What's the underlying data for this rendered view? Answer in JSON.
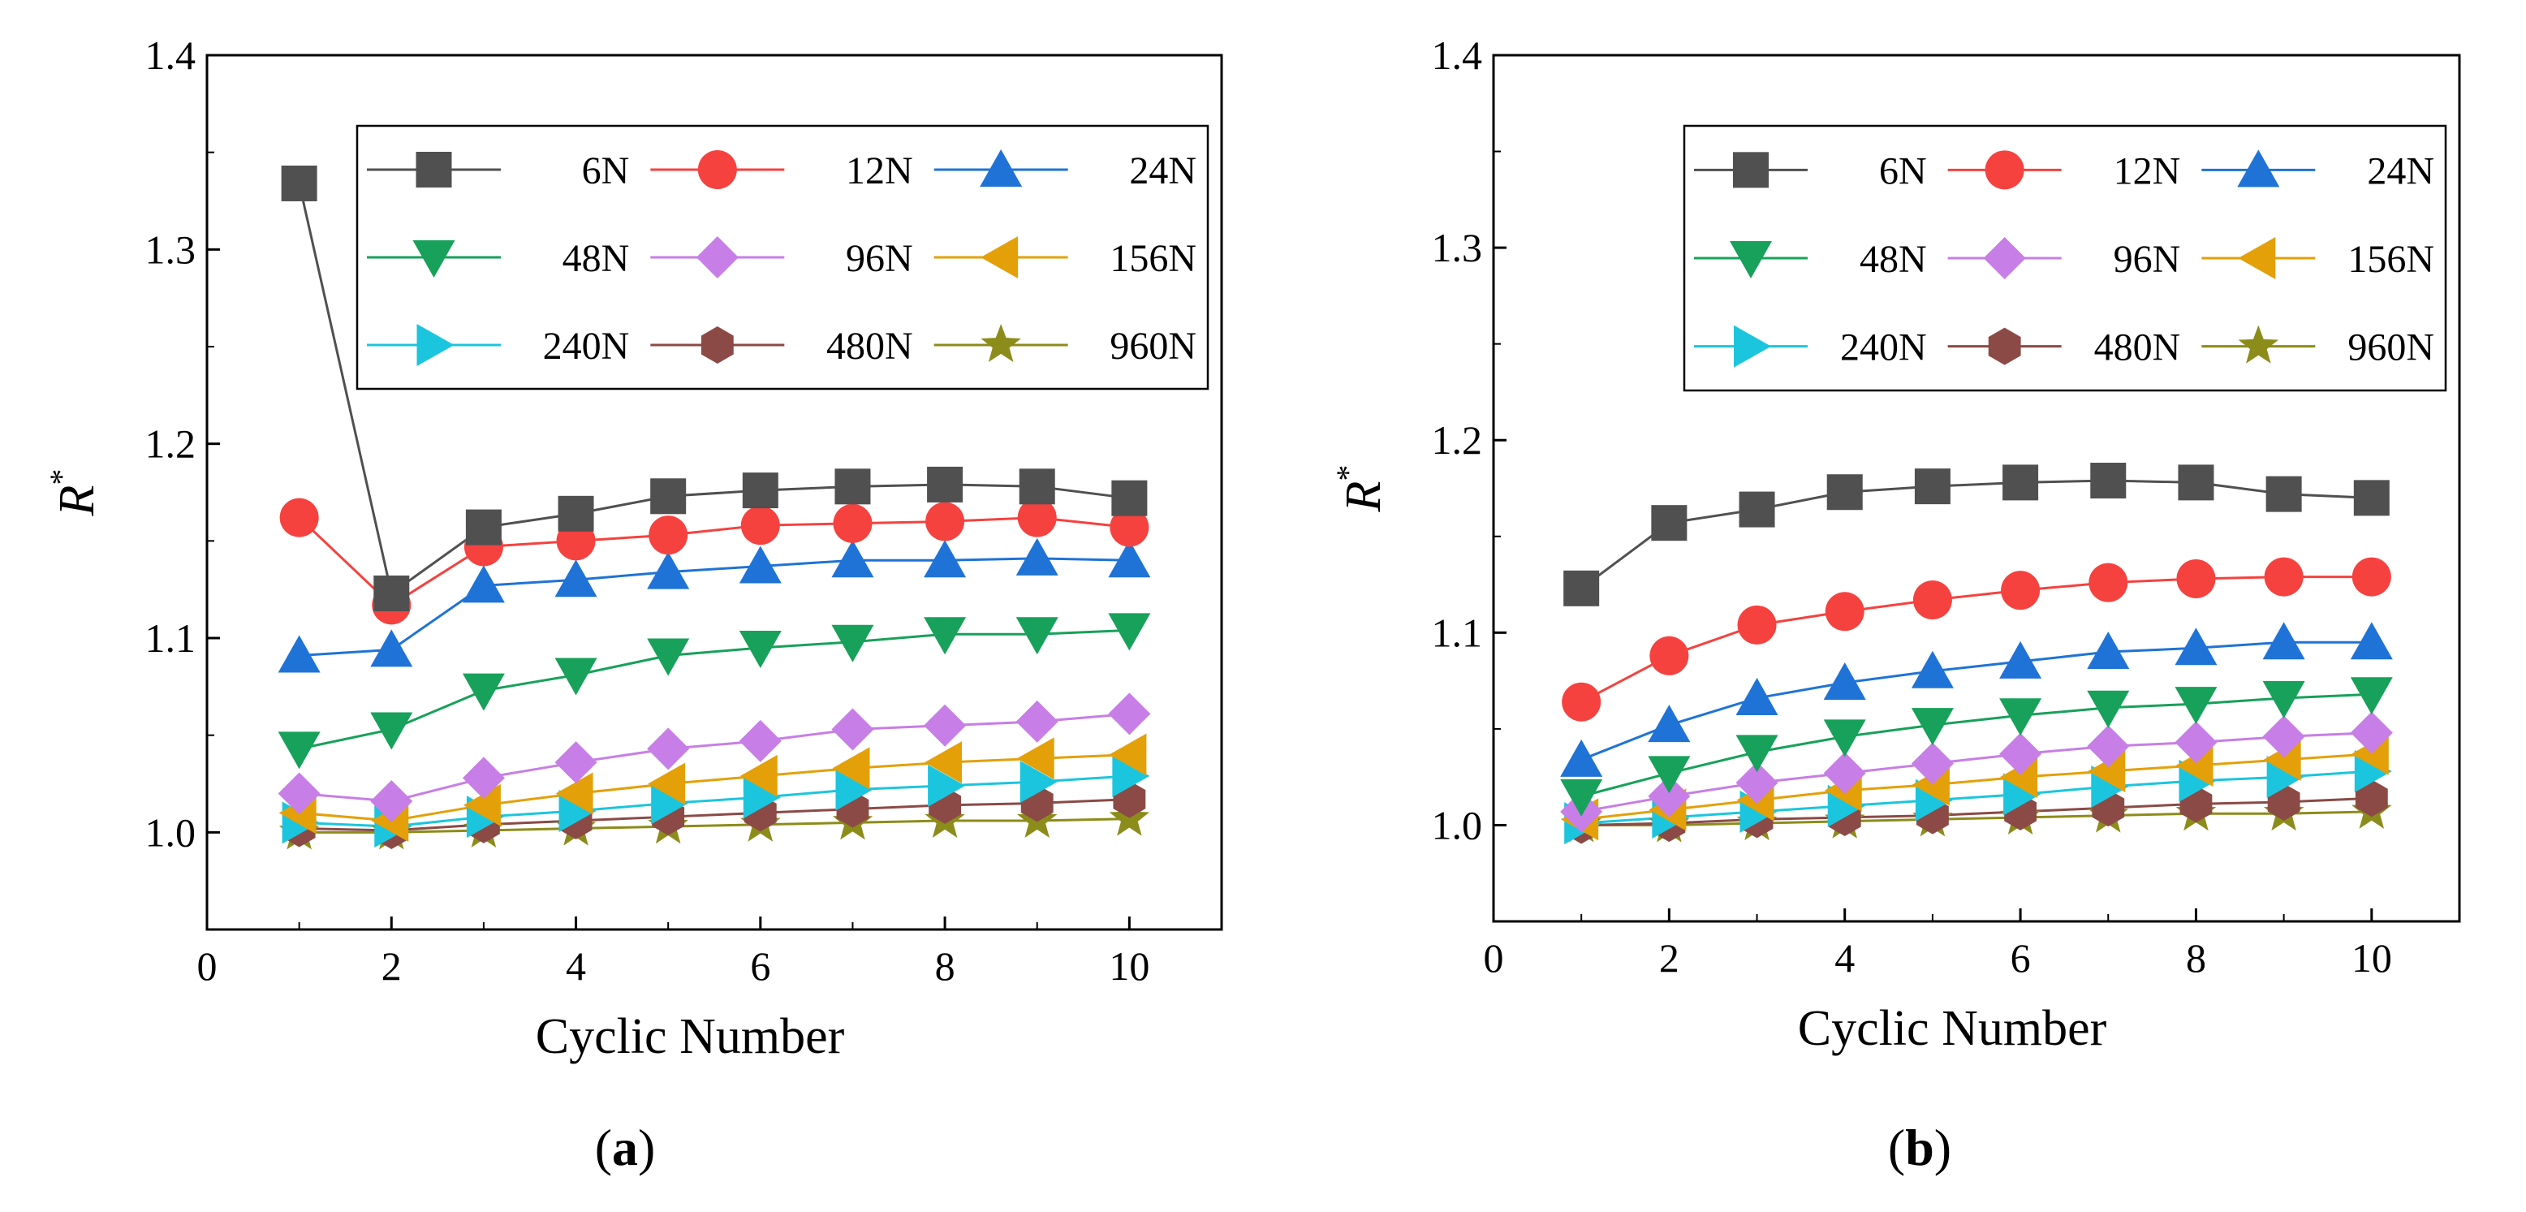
{
  "chart_data": [
    {
      "type": "line",
      "panel_label": "(a)",
      "panel_letter": "a",
      "xlabel": "Cyclic Number",
      "ylabel": "R",
      "ylabel_superscript": "*",
      "xlim": [
        0,
        11
      ],
      "ylim": [
        0.95,
        1.4
      ],
      "xticks": [
        0,
        2,
        4,
        6,
        8,
        10
      ],
      "yticks": [
        1.0,
        1.1,
        1.2,
        1.3,
        1.4
      ],
      "xtick_labels": [
        "0",
        "2",
        "4",
        "6",
        "8",
        "10"
      ],
      "ytick_labels": [
        "1.0",
        "1.1",
        "1.2",
        "1.3",
        "1.4"
      ],
      "grid": false,
      "legend_position": "top-right",
      "x": [
        1,
        2,
        3,
        4,
        5,
        6,
        7,
        8,
        9,
        10
      ],
      "series": [
        {
          "name": "6N",
          "marker": "square",
          "color": "#505050",
          "values": [
            1.334,
            1.123,
            1.157,
            1.164,
            1.173,
            1.176,
            1.178,
            1.179,
            1.178,
            1.172
          ]
        },
        {
          "name": "12N",
          "marker": "circle",
          "color": "#f5423f",
          "values": [
            1.162,
            1.117,
            1.147,
            1.15,
            1.153,
            1.158,
            1.159,
            1.16,
            1.162,
            1.157
          ]
        },
        {
          "name": "24N",
          "marker": "triangle-up",
          "color": "#1f73d6",
          "values": [
            1.091,
            1.094,
            1.127,
            1.13,
            1.134,
            1.137,
            1.14,
            1.14,
            1.141,
            1.14
          ]
        },
        {
          "name": "48N",
          "marker": "triangle-down",
          "color": "#17a15a",
          "values": [
            1.043,
            1.053,
            1.073,
            1.081,
            1.091,
            1.095,
            1.098,
            1.102,
            1.102,
            1.104
          ]
        },
        {
          "name": "96N",
          "marker": "diamond",
          "color": "#c77ee6",
          "values": [
            1.02,
            1.016,
            1.028,
            1.036,
            1.043,
            1.047,
            1.053,
            1.055,
            1.057,
            1.061
          ]
        },
        {
          "name": "156N",
          "marker": "triangle-left",
          "color": "#e3a008",
          "values": [
            1.01,
            1.006,
            1.014,
            1.02,
            1.025,
            1.029,
            1.033,
            1.036,
            1.038,
            1.04
          ]
        },
        {
          "name": "240N",
          "marker": "triangle-right",
          "color": "#1cc5de",
          "values": [
            1.005,
            1.003,
            1.008,
            1.011,
            1.015,
            1.018,
            1.022,
            1.024,
            1.026,
            1.029
          ]
        },
        {
          "name": "480N",
          "marker": "hexagon",
          "color": "#8b4a45",
          "values": [
            1.002,
            1.001,
            1.004,
            1.006,
            1.008,
            1.01,
            1.012,
            1.014,
            1.015,
            1.017
          ]
        },
        {
          "name": "960N",
          "marker": "star",
          "color": "#8c8c1a",
          "values": [
            1.0,
            1.0,
            1.001,
            1.002,
            1.003,
            1.004,
            1.005,
            1.006,
            1.006,
            1.007
          ]
        }
      ]
    },
    {
      "type": "line",
      "panel_label": "(b)",
      "panel_letter": "b",
      "xlabel": "Cyclic Number",
      "ylabel": "R",
      "ylabel_superscript": "*",
      "xlim": [
        0,
        11
      ],
      "ylim": [
        0.95,
        1.4
      ],
      "xticks": [
        0,
        2,
        4,
        6,
        8,
        10
      ],
      "yticks": [
        1.0,
        1.1,
        1.2,
        1.3,
        1.4
      ],
      "xtick_labels": [
        "0",
        "2",
        "4",
        "6",
        "8",
        "10"
      ],
      "ytick_labels": [
        "1.0",
        "1.1",
        "1.2",
        "1.3",
        "1.4"
      ],
      "grid": false,
      "legend_position": "top-right",
      "x": [
        1,
        2,
        3,
        4,
        5,
        6,
        7,
        8,
        9,
        10
      ],
      "series": [
        {
          "name": "6N",
          "marker": "square",
          "color": "#505050",
          "values": [
            1.123,
            1.157,
            1.164,
            1.173,
            1.176,
            1.178,
            1.179,
            1.178,
            1.172,
            1.17
          ]
        },
        {
          "name": "12N",
          "marker": "circle",
          "color": "#f5423f",
          "values": [
            1.064,
            1.088,
            1.104,
            1.111,
            1.117,
            1.122,
            1.126,
            1.128,
            1.129,
            1.129
          ]
        },
        {
          "name": "24N",
          "marker": "triangle-up",
          "color": "#1f73d6",
          "values": [
            1.034,
            1.052,
            1.066,
            1.074,
            1.08,
            1.085,
            1.09,
            1.092,
            1.095,
            1.095
          ]
        },
        {
          "name": "48N",
          "marker": "triangle-down",
          "color": "#17a15a",
          "values": [
            1.015,
            1.027,
            1.038,
            1.046,
            1.052,
            1.057,
            1.061,
            1.063,
            1.066,
            1.068
          ]
        },
        {
          "name": "96N",
          "marker": "diamond",
          "color": "#c77ee6",
          "values": [
            1.007,
            1.015,
            1.022,
            1.027,
            1.032,
            1.037,
            1.041,
            1.043,
            1.046,
            1.048
          ]
        },
        {
          "name": "156N",
          "marker": "triangle-left",
          "color": "#e3a008",
          "values": [
            1.003,
            1.008,
            1.013,
            1.018,
            1.021,
            1.025,
            1.028,
            1.031,
            1.034,
            1.037
          ]
        },
        {
          "name": "240N",
          "marker": "triangle-right",
          "color": "#1cc5de",
          "values": [
            1.001,
            1.004,
            1.007,
            1.01,
            1.013,
            1.016,
            1.02,
            1.023,
            1.025,
            1.028
          ]
        },
        {
          "name": "480N",
          "marker": "hexagon",
          "color": "#8b4a45",
          "values": [
            1.0,
            1.001,
            1.003,
            1.004,
            1.005,
            1.007,
            1.009,
            1.011,
            1.012,
            1.014
          ]
        },
        {
          "name": "960N",
          "marker": "star",
          "color": "#8c8c1a",
          "values": [
            1.0,
            1.0,
            1.001,
            1.002,
            1.003,
            1.004,
            1.005,
            1.006,
            1.006,
            1.007
          ]
        }
      ]
    }
  ]
}
